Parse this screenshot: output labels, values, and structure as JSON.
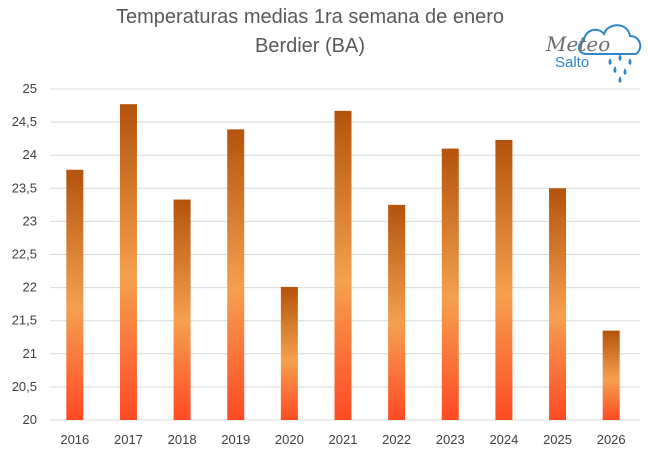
{
  "title_line1": "Temperaturas medias 1ra semana de enero",
  "title_line2": "Berdier (BA)",
  "logo": {
    "line1": "Meteo",
    "line2": "Salto"
  },
  "colors": {
    "bar_top": "#b4530b",
    "bar_mid": "#f5a04e",
    "bar_bottom": "#ff4a24",
    "grid": "#d9d9d9",
    "logo_blue": "#2e86c9"
  },
  "chart_data": {
    "type": "bar",
    "categories": [
      "2016",
      "2017",
      "2018",
      "2019",
      "2020",
      "2021",
      "2022",
      "2023",
      "2024",
      "2025",
      "2026"
    ],
    "values": [
      23.78,
      24.77,
      23.33,
      24.39,
      22.01,
      24.67,
      23.25,
      24.1,
      24.23,
      23.5,
      21.35
    ],
    "ylim": [
      20,
      25
    ],
    "yticks": [
      "20",
      "20,5",
      "21",
      "21,5",
      "22",
      "22,5",
      "23",
      "23,5",
      "24",
      "24,5",
      "25"
    ],
    "ytick_values": [
      20,
      20.5,
      21,
      21.5,
      22,
      22.5,
      23,
      23.5,
      24,
      24.5,
      25
    ],
    "grid": true,
    "legend": "none"
  }
}
